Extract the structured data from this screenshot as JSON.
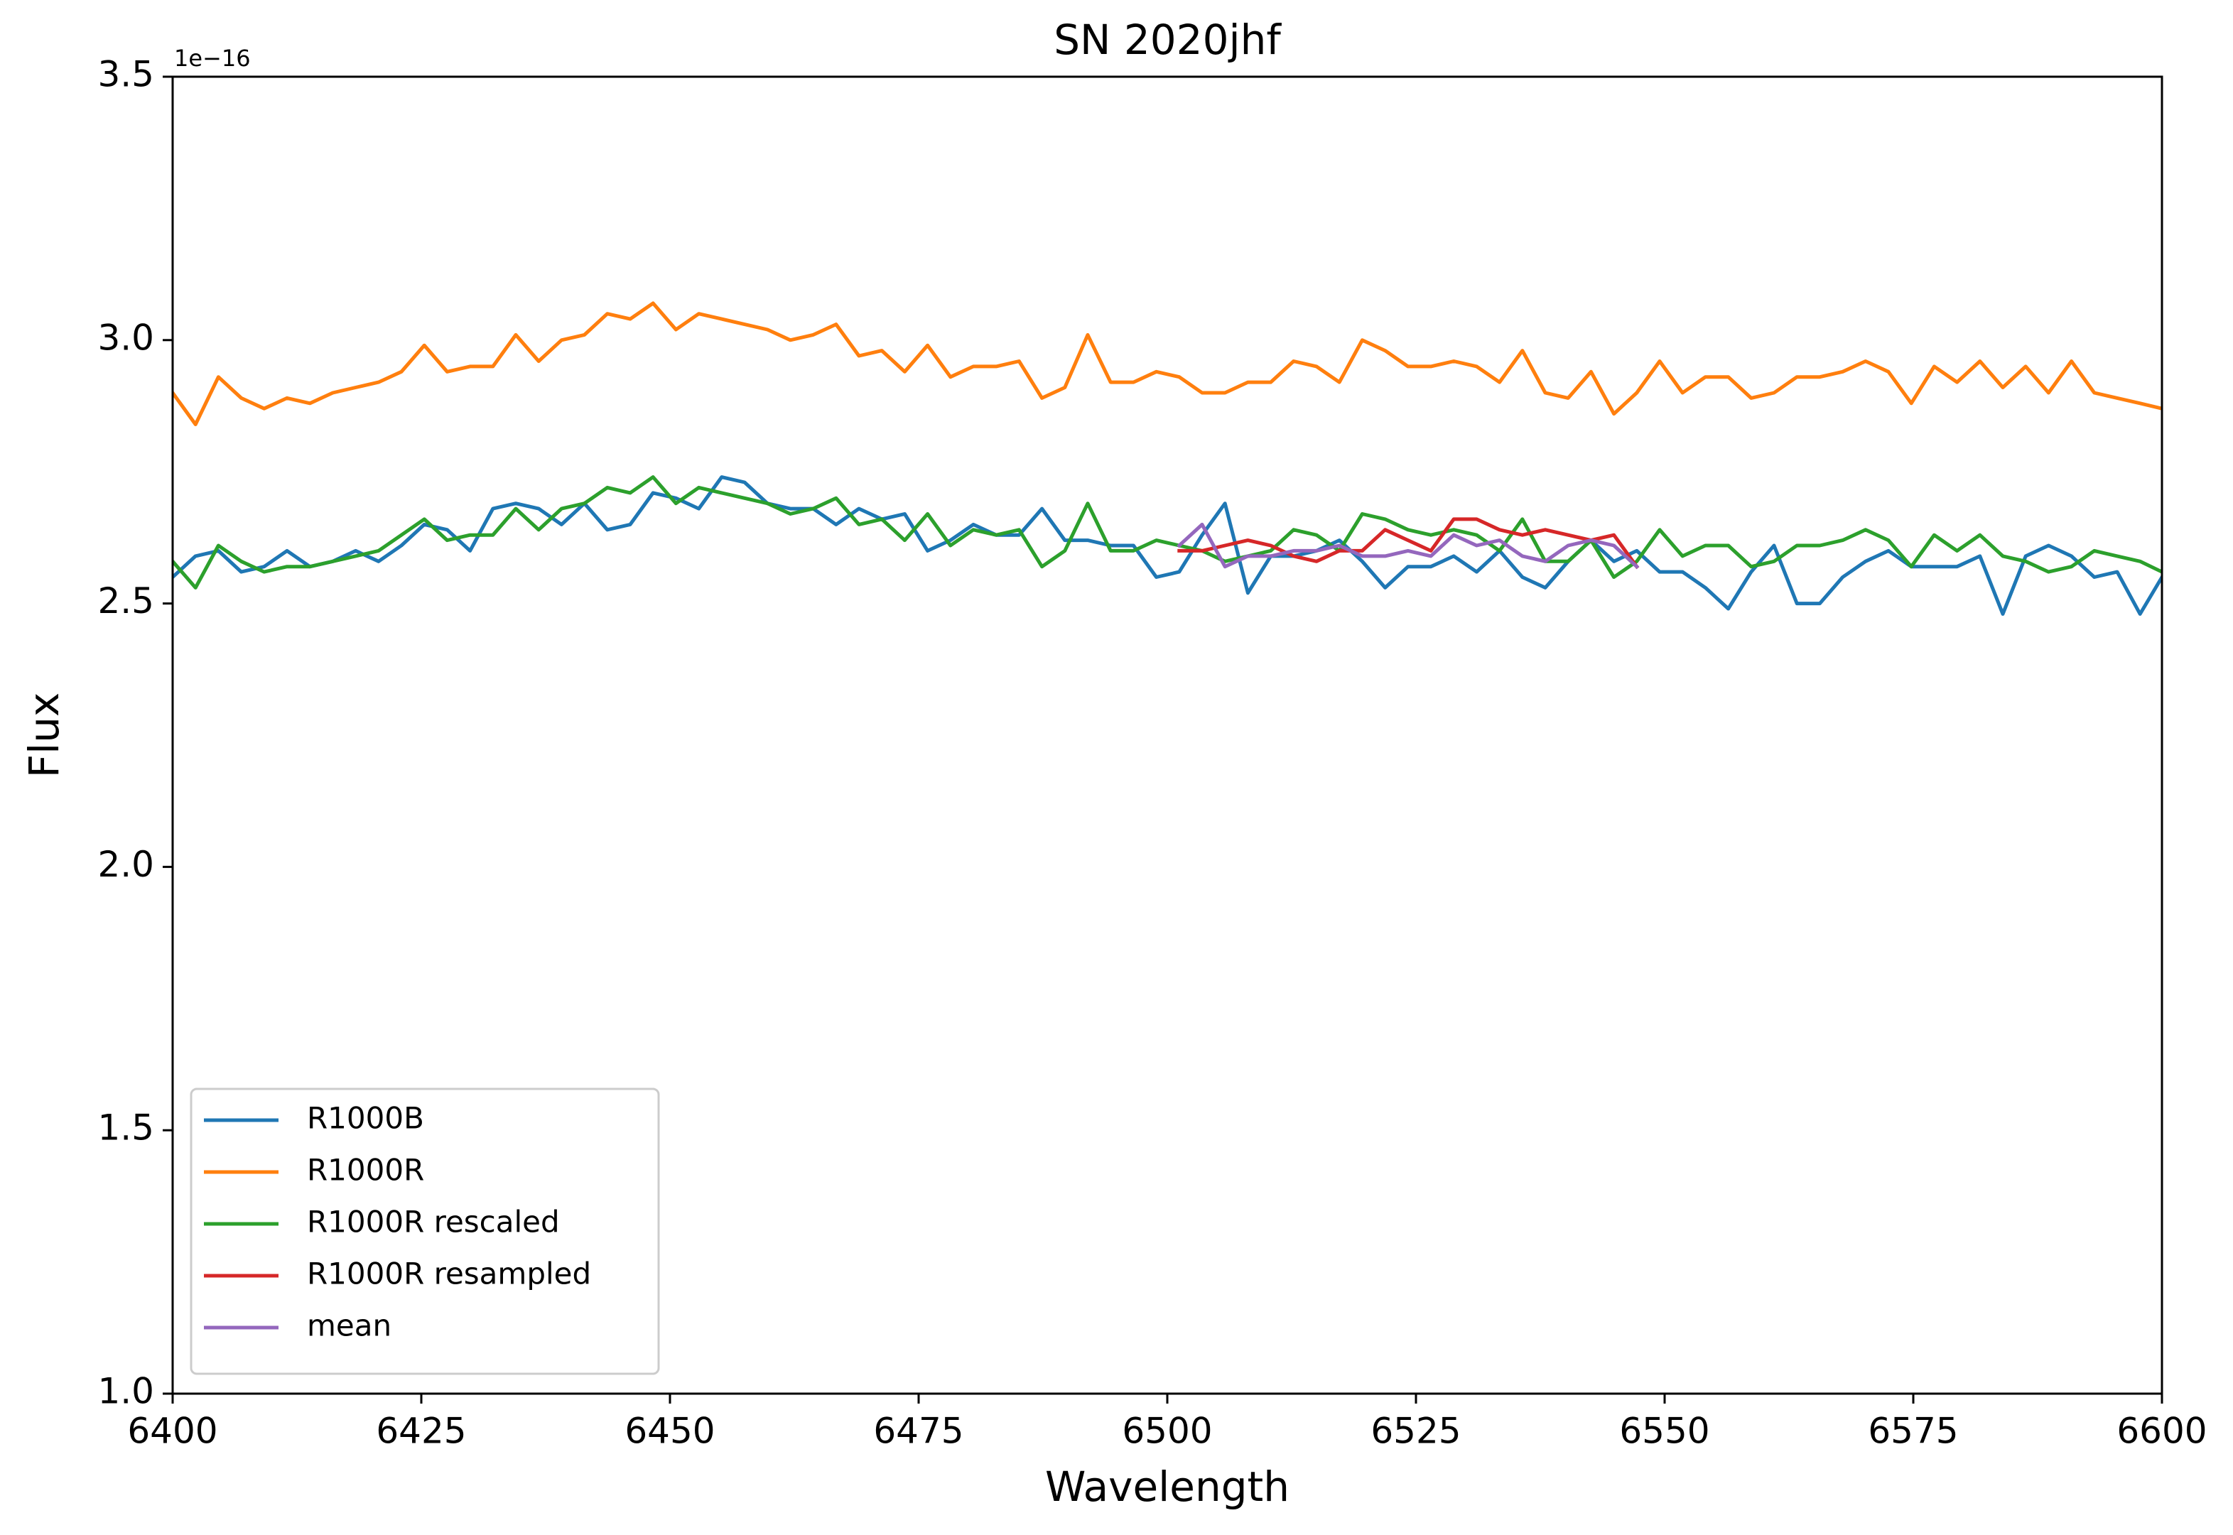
{
  "chart_data": {
    "type": "line",
    "title": "SN 2020jhf",
    "xlabel": "Wavelength",
    "ylabel": "Flux",
    "y_offset_text": "1e−16",
    "x": [
      6400,
      6402.3,
      6404.6,
      6406.9,
      6409.2,
      6411.5,
      6413.8,
      6416.1,
      6418.4,
      6420.7,
      6423,
      6425.3,
      6427.6,
      6429.9,
      6432.2,
      6434.5,
      6436.8,
      6439.1,
      6441.4,
      6443.7,
      6446,
      6448.3,
      6450.6,
      6452.9,
      6455.2,
      6457.5,
      6459.8,
      6462.1,
      6464.4,
      6466.7,
      6469,
      6471.3,
      6473.6,
      6475.9,
      6478.2,
      6480.5,
      6482.8,
      6485.1,
      6487.4,
      6489.7,
      6492,
      6494.3,
      6496.6,
      6498.9,
      6501.2,
      6503.5,
      6505.8,
      6508.1,
      6510.4,
      6512.7,
      6515,
      6517.3,
      6519.6,
      6521.9,
      6524.2,
      6526.5,
      6528.8,
      6531.1,
      6533.4,
      6535.7,
      6538,
      6540.3,
      6542.6,
      6544.9,
      6547.2,
      6549.5,
      6551.8,
      6554.1,
      6556.4,
      6558.7,
      6561,
      6563.3,
      6565.6,
      6567.9,
      6570.2,
      6572.5,
      6574.8,
      6577.1,
      6579.4,
      6581.7,
      6584,
      6586.3,
      6588.6,
      6590.9,
      6593.2,
      6595.5,
      6597.8,
      6600
    ],
    "series": [
      {
        "name": "R1000B",
        "color": "#1f77b4",
        "values": [
          2.55,
          2.59,
          2.6,
          2.56,
          2.57,
          2.6,
          2.57,
          2.58,
          2.6,
          2.58,
          2.61,
          2.65,
          2.64,
          2.6,
          2.68,
          2.69,
          2.68,
          2.65,
          2.69,
          2.64,
          2.65,
          2.71,
          2.7,
          2.68,
          2.74,
          2.73,
          2.69,
          2.68,
          2.68,
          2.65,
          2.68,
          2.66,
          2.67,
          2.6,
          2.62,
          2.65,
          2.63,
          2.63,
          2.68,
          2.62,
          2.62,
          2.61,
          2.61,
          2.55,
          2.56,
          2.63,
          2.69,
          2.52,
          2.59,
          2.59,
          2.6,
          2.62,
          2.58,
          2.53,
          2.57,
          2.57,
          2.59,
          2.56,
          2.6,
          2.55,
          2.53,
          2.58,
          2.62,
          2.58,
          2.6,
          2.56,
          2.56,
          2.53,
          2.49,
          2.56,
          2.61,
          2.5,
          2.5,
          2.55,
          2.58,
          2.6,
          2.57,
          2.57,
          2.57,
          2.59,
          2.48,
          2.59,
          2.61,
          2.59,
          2.55,
          2.56,
          2.48,
          2.55
        ]
      },
      {
        "name": "R1000R",
        "color": "#ff7f0e",
        "values": [
          2.9,
          2.84,
          2.93,
          2.89,
          2.87,
          2.89,
          2.88,
          2.9,
          2.91,
          2.92,
          2.94,
          2.99,
          2.94,
          2.95,
          2.95,
          3.01,
          2.96,
          3.0,
          3.01,
          3.05,
          3.04,
          3.07,
          3.02,
          3.05,
          3.04,
          3.03,
          3.02,
          3.0,
          3.01,
          3.03,
          2.97,
          2.98,
          2.94,
          2.99,
          2.93,
          2.95,
          2.95,
          2.96,
          2.89,
          2.91,
          3.01,
          2.92,
          2.92,
          2.94,
          2.93,
          2.9,
          2.9,
          2.92,
          2.92,
          2.96,
          2.95,
          2.92,
          3.0,
          2.98,
          2.95,
          2.95,
          2.96,
          2.95,
          2.92,
          2.98,
          2.9,
          2.89,
          2.94,
          2.86,
          2.9,
          2.96,
          2.9,
          2.93,
          2.93,
          2.89,
          2.9,
          2.93,
          2.93,
          2.94,
          2.96,
          2.94,
          2.88,
          2.95,
          2.92,
          2.96,
          2.91,
          2.95,
          2.9,
          2.96,
          2.9,
          2.89,
          2.88,
          2.87
        ]
      },
      {
        "name": "R1000R rescaled",
        "color": "#2ca02c",
        "values": [
          2.58,
          2.53,
          2.61,
          2.58,
          2.56,
          2.57,
          2.57,
          2.58,
          2.59,
          2.6,
          2.63,
          2.66,
          2.62,
          2.63,
          2.63,
          2.68,
          2.64,
          2.68,
          2.69,
          2.72,
          2.71,
          2.74,
          2.69,
          2.72,
          2.71,
          2.7,
          2.69,
          2.67,
          2.68,
          2.7,
          2.65,
          2.66,
          2.62,
          2.67,
          2.61,
          2.64,
          2.63,
          2.64,
          2.57,
          2.6,
          2.69,
          2.6,
          2.6,
          2.62,
          2.61,
          2.6,
          2.58,
          2.59,
          2.6,
          2.64,
          2.63,
          2.6,
          2.67,
          2.66,
          2.64,
          2.63,
          2.64,
          2.63,
          2.6,
          2.66,
          2.58,
          2.58,
          2.62,
          2.55,
          2.58,
          2.64,
          2.59,
          2.61,
          2.61,
          2.57,
          2.58,
          2.61,
          2.61,
          2.62,
          2.64,
          2.62,
          2.57,
          2.63,
          2.6,
          2.63,
          2.59,
          2.58,
          2.56,
          2.57,
          2.6,
          2.59,
          2.58,
          2.56
        ]
      },
      {
        "name": "R1000R resampled",
        "color": "#d62728",
        "values": [
          null,
          null,
          null,
          null,
          null,
          null,
          null,
          null,
          null,
          null,
          null,
          null,
          null,
          null,
          null,
          null,
          null,
          null,
          null,
          null,
          null,
          null,
          null,
          null,
          null,
          null,
          null,
          null,
          null,
          null,
          null,
          null,
          null,
          null,
          null,
          null,
          null,
          null,
          null,
          null,
          null,
          null,
          null,
          null,
          2.6,
          2.6,
          2.61,
          2.62,
          2.61,
          2.59,
          2.58,
          2.6,
          2.6,
          2.64,
          2.62,
          2.6,
          2.66,
          2.66,
          2.64,
          2.63,
          2.64,
          2.63,
          2.62,
          2.63,
          2.57,
          null,
          null,
          null,
          null,
          null,
          null,
          null,
          null,
          null,
          null,
          null,
          null,
          null,
          null,
          null,
          null,
          null,
          null,
          null,
          null,
          null,
          null,
          null
        ]
      },
      {
        "name": "mean",
        "color": "#9467bd",
        "values": [
          null,
          null,
          null,
          null,
          null,
          null,
          null,
          null,
          null,
          null,
          null,
          null,
          null,
          null,
          null,
          null,
          null,
          null,
          null,
          null,
          null,
          null,
          null,
          null,
          null,
          null,
          null,
          null,
          null,
          null,
          null,
          null,
          null,
          null,
          null,
          null,
          null,
          null,
          null,
          null,
          null,
          null,
          null,
          null,
          2.61,
          2.65,
          2.57,
          2.59,
          2.59,
          2.6,
          2.6,
          2.61,
          2.59,
          2.59,
          2.6,
          2.59,
          2.63,
          2.61,
          2.62,
          2.59,
          2.58,
          2.61,
          2.62,
          2.61,
          2.57,
          null,
          null,
          null,
          null,
          null,
          null,
          null,
          null,
          null,
          null,
          null,
          null,
          null,
          null,
          null,
          null,
          null,
          null,
          null,
          null,
          null,
          null,
          null
        ]
      }
    ],
    "xlim": [
      6400,
      6600
    ],
    "xticks": [
      6400,
      6425,
      6450,
      6475,
      6500,
      6525,
      6550,
      6575,
      6600
    ],
    "ylim": [
      1,
      3.5
    ],
    "yticks": [
      {
        "value": 1,
        "label": "1.0"
      },
      {
        "value": 1.5,
        "label": "1.5"
      },
      {
        "value": 2,
        "label": "2.0"
      },
      {
        "value": 2.5,
        "label": "2.5"
      },
      {
        "value": 3,
        "label": "3.0"
      },
      {
        "value": 3.5,
        "label": "3.5"
      }
    ],
    "legend": "lower left",
    "grid": false
  }
}
